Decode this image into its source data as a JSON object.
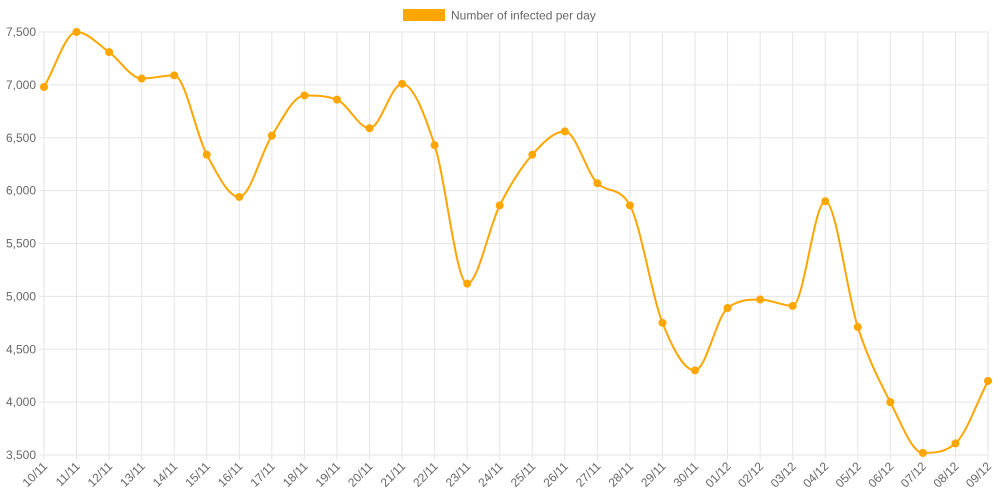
{
  "chart_data": {
    "type": "line",
    "title": "",
    "xlabel": "",
    "ylabel": "",
    "legend_position": "top-center",
    "grid": true,
    "ylim": [
      3500,
      7500
    ],
    "y_ticks": [
      "3,500",
      "4,000",
      "4,500",
      "5,000",
      "5,500",
      "6,000",
      "6,500",
      "7,000",
      "7,500"
    ],
    "y_tick_values": [
      3500,
      4000,
      4500,
      5000,
      5500,
      6000,
      6500,
      7000,
      7500
    ],
    "categories": [
      "10/11",
      "11/11",
      "12/11",
      "13/11",
      "14/11",
      "15/11",
      "16/11",
      "17/11",
      "18/11",
      "19/11",
      "20/11",
      "21/11",
      "22/11",
      "23/11",
      "24/11",
      "25/11",
      "26/11",
      "27/11",
      "28/11",
      "29/11",
      "30/11",
      "01/12",
      "02/12",
      "03/12",
      "04/12",
      "05/12",
      "06/12",
      "07/12",
      "08/12",
      "09/12"
    ],
    "series": [
      {
        "name": "Number of infected per day",
        "color": "#ffa500",
        "values": [
          6980,
          7500,
          7310,
          7060,
          7090,
          6340,
          5940,
          6520,
          6900,
          6860,
          6590,
          7010,
          6430,
          5120,
          5860,
          6340,
          6560,
          6070,
          5860,
          4750,
          4300,
          4890,
          4970,
          4910,
          5900,
          4710,
          4000,
          3520,
          3610,
          4200
        ]
      }
    ]
  }
}
